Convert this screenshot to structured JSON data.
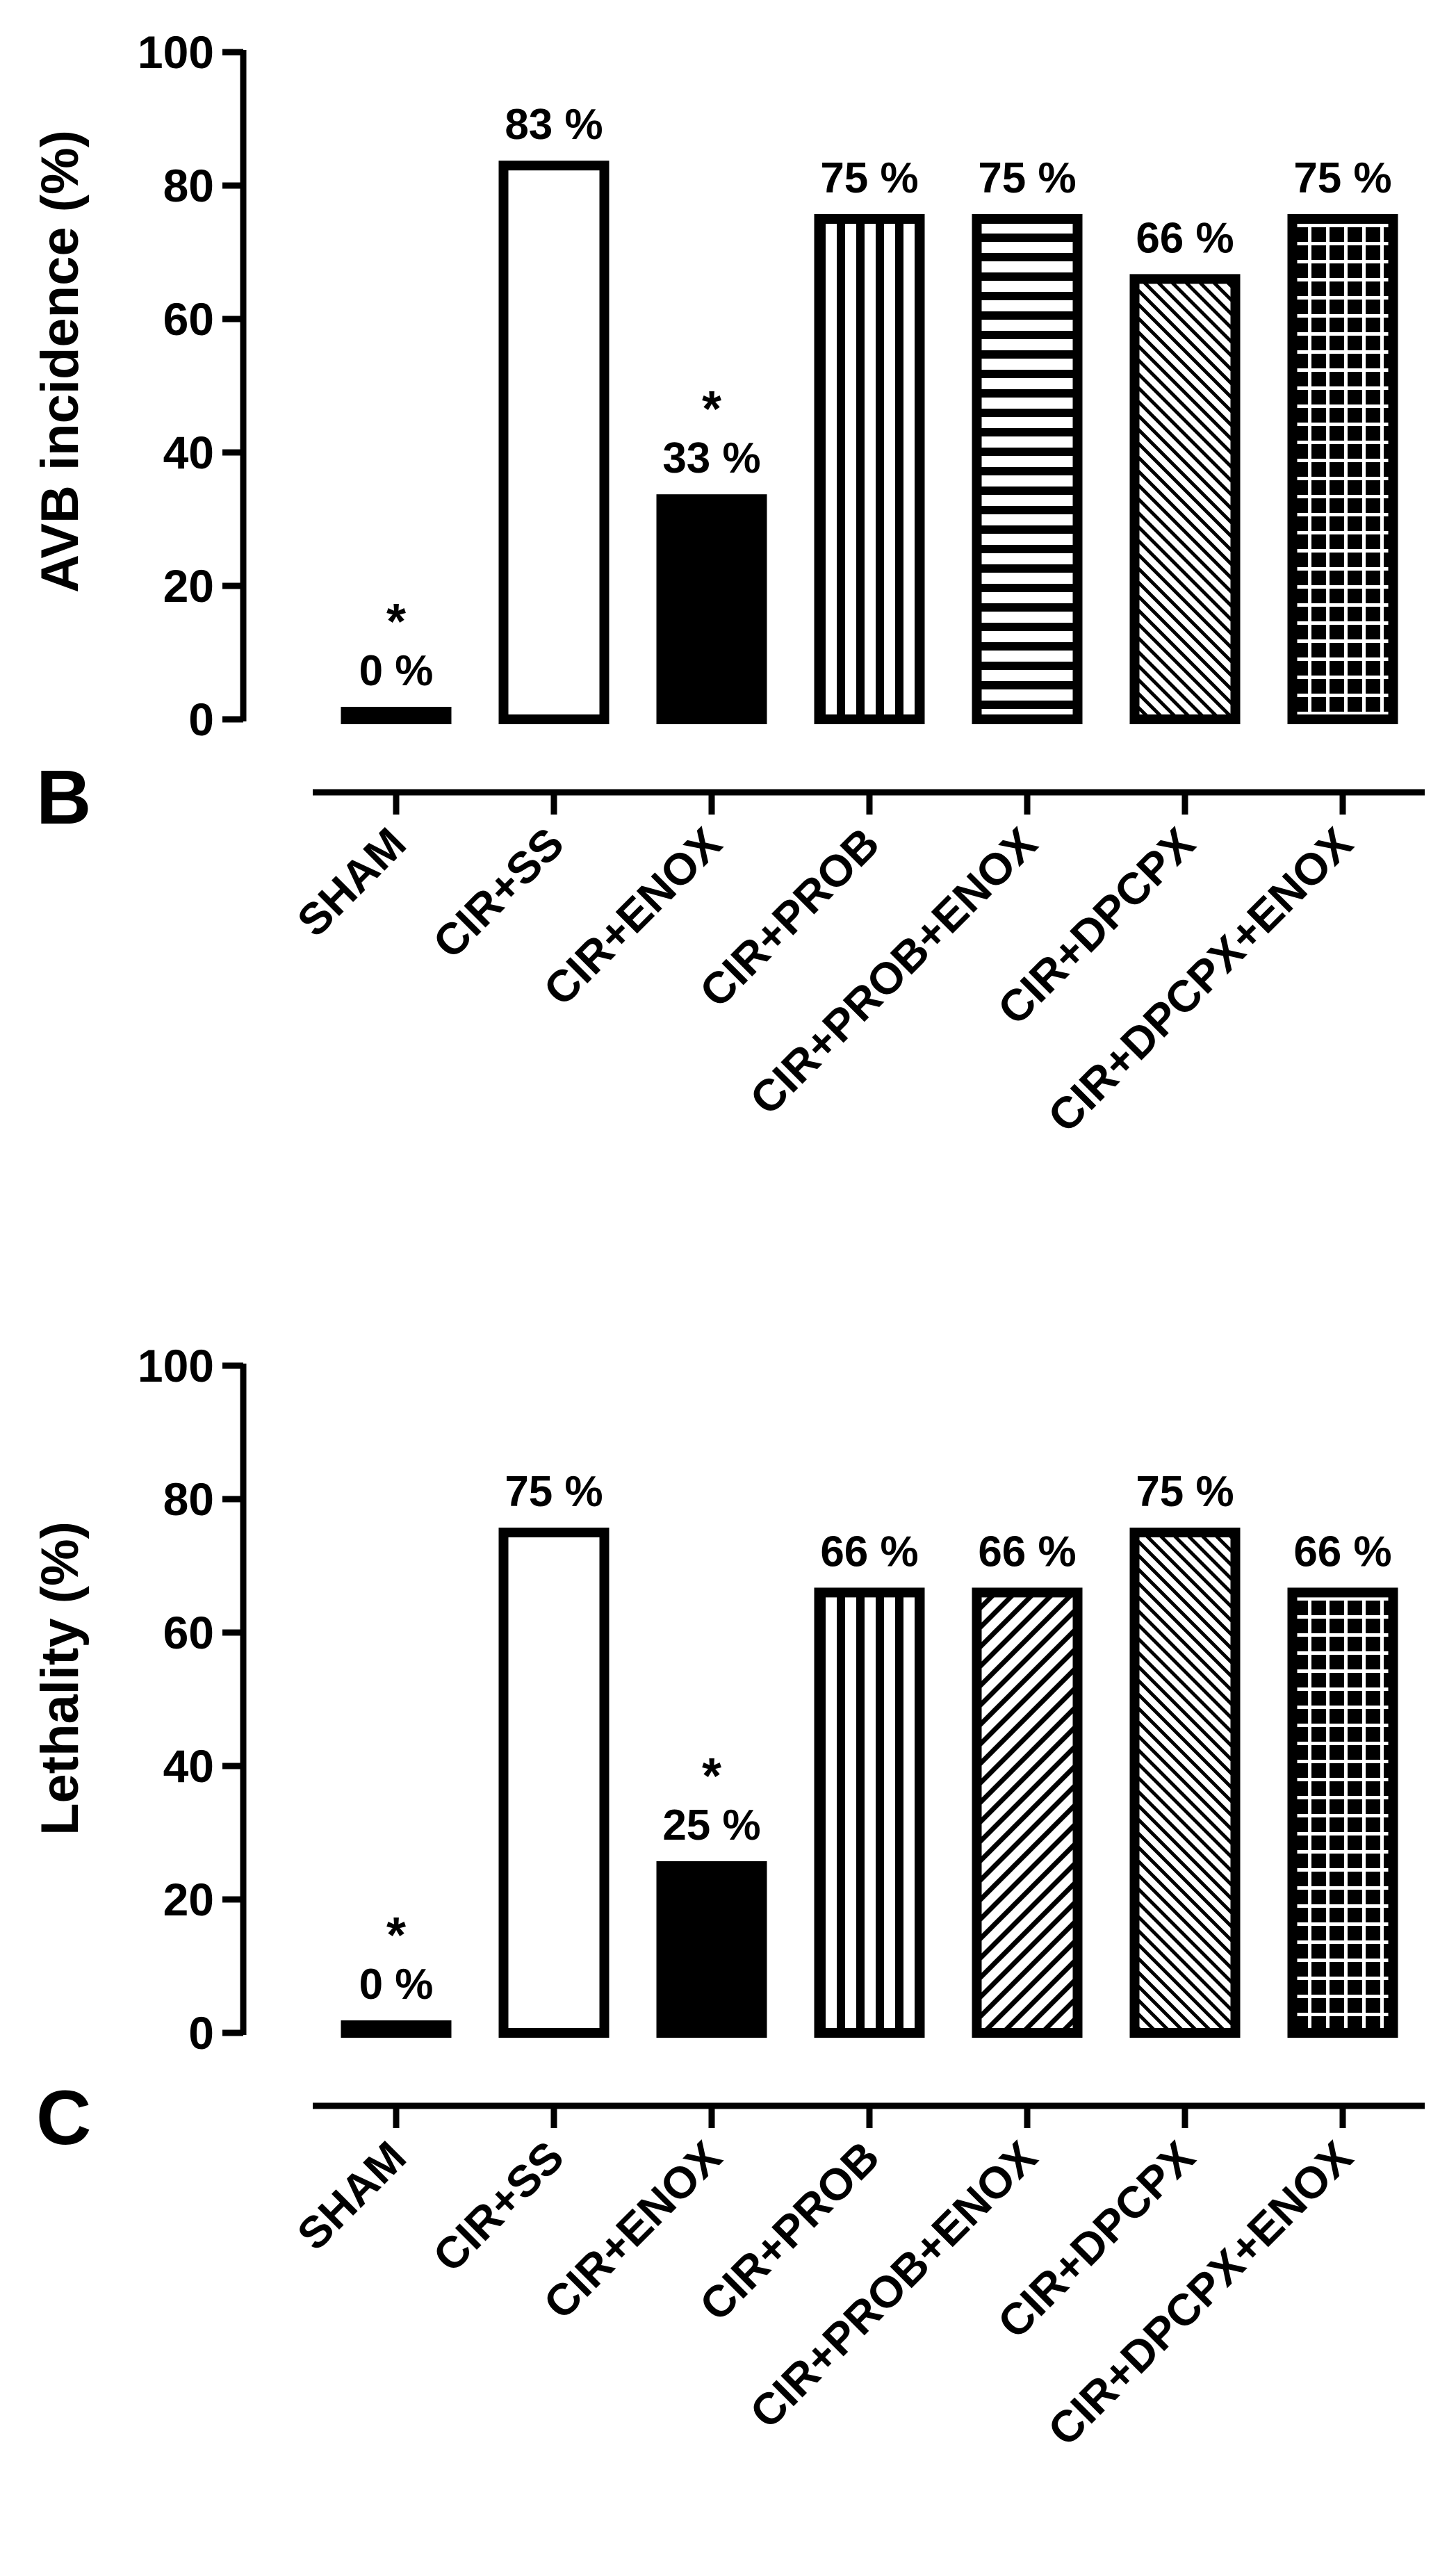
{
  "chart_data": [
    {
      "type": "bar",
      "panel_label": "B",
      "ylabel": "AVB incidence (%)",
      "ylim": [
        0,
        100
      ],
      "yticks": [
        "0",
        "20",
        "40",
        "60",
        "80",
        "100"
      ],
      "categories": [
        "SHAM",
        "CIR+SS",
        "CIR+ENOX",
        "CIR+PROB",
        "CIR+PROB+ENOX",
        "CIR+DPCPX",
        "CIR+DPCPX+ENOX"
      ],
      "values": [
        0,
        83,
        33,
        75,
        75,
        66,
        75
      ],
      "data_labels": [
        "0 %",
        "83 %",
        "33 %",
        "75 %",
        "75 %",
        "66 %",
        "75 %"
      ],
      "significance": [
        "*",
        "",
        "*",
        "",
        "",
        "",
        ""
      ],
      "patterns": [
        "solid-white",
        "solid-white",
        "solid-black",
        "vertical",
        "horizontal",
        "diagonal-down",
        "grid"
      ]
    },
    {
      "type": "bar",
      "panel_label": "C",
      "ylabel": "Lethality (%)",
      "ylim": [
        0,
        100
      ],
      "yticks": [
        "0",
        "20",
        "40",
        "60",
        "80",
        "100"
      ],
      "categories": [
        "SHAM",
        "CIR+SS",
        "CIR+ENOX",
        "CIR+PROB",
        "CIR+PROB+ENOX",
        "CIR+DPCPX",
        "CIR+DPCPX+ENOX"
      ],
      "values": [
        0,
        75,
        25,
        66,
        66,
        75,
        66
      ],
      "data_labels": [
        "0 %",
        "75 %",
        "25 %",
        "66 %",
        "66 %",
        "75 %",
        "66 %"
      ],
      "significance": [
        "*",
        "",
        "*",
        "",
        "",
        "",
        ""
      ],
      "patterns": [
        "solid-white",
        "solid-white",
        "solid-black",
        "vertical",
        "diagonal-up",
        "diagonal-down",
        "grid"
      ]
    }
  ]
}
